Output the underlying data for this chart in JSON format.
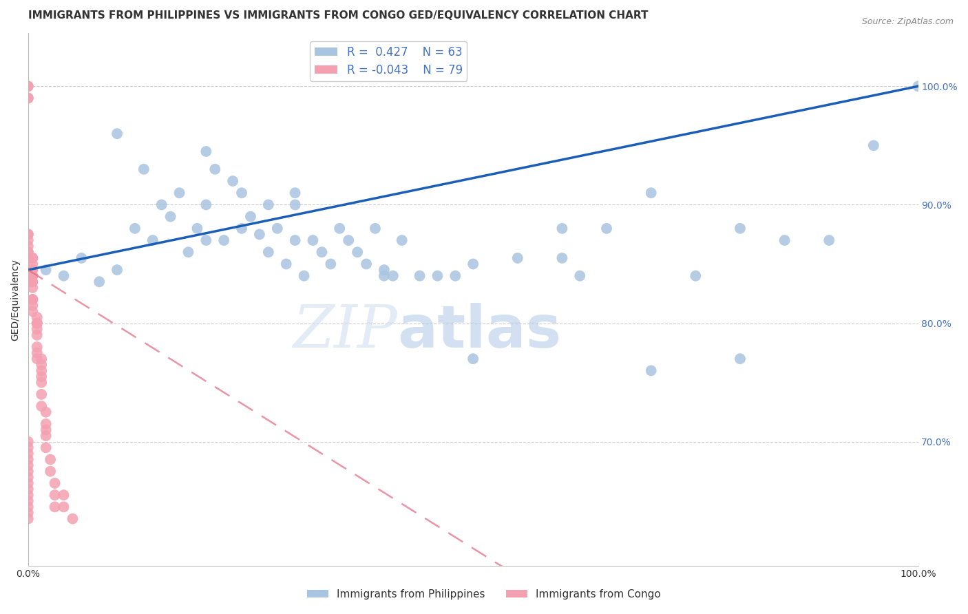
{
  "title": "IMMIGRANTS FROM PHILIPPINES VS IMMIGRANTS FROM CONGO GED/EQUIVALENCY CORRELATION CHART",
  "source": "Source: ZipAtlas.com",
  "ylabel": "GED/Equivalency",
  "ytick_labels": [
    "100.0%",
    "90.0%",
    "80.0%",
    "70.0%"
  ],
  "ytick_positions": [
    1.0,
    0.9,
    0.8,
    0.7
  ],
  "xlim": [
    0.0,
    1.0
  ],
  "ylim": [
    0.595,
    1.045
  ],
  "legend_r_blue": "0.427",
  "legend_n_blue": "63",
  "legend_r_pink": "-0.043",
  "legend_n_pink": "79",
  "color_blue": "#a8c4e0",
  "color_pink": "#f4a0b0",
  "color_trendline_blue": "#1a5eb8",
  "color_trendline_pink": "#e06880",
  "philippines_x": [
    0.02,
    0.04,
    0.06,
    0.08,
    0.1,
    0.12,
    0.13,
    0.14,
    0.15,
    0.16,
    0.17,
    0.18,
    0.19,
    0.2,
    0.2,
    0.21,
    0.22,
    0.23,
    0.24,
    0.24,
    0.25,
    0.26,
    0.27,
    0.27,
    0.28,
    0.29,
    0.3,
    0.3,
    0.31,
    0.32,
    0.33,
    0.34,
    0.35,
    0.36,
    0.37,
    0.38,
    0.39,
    0.4,
    0.41,
    0.42,
    0.44,
    0.46,
    0.48,
    0.5,
    0.55,
    0.6,
    0.62,
    0.65,
    0.7,
    0.75,
    0.8,
    0.85,
    0.9,
    0.95,
    1.0,
    0.1,
    0.2,
    0.3,
    0.4,
    0.5,
    0.6,
    0.7,
    0.8
  ],
  "philippines_y": [
    0.845,
    0.84,
    0.855,
    0.835,
    0.845,
    0.88,
    0.93,
    0.87,
    0.9,
    0.89,
    0.91,
    0.86,
    0.88,
    0.87,
    0.9,
    0.93,
    0.87,
    0.92,
    0.88,
    0.91,
    0.89,
    0.875,
    0.86,
    0.9,
    0.88,
    0.85,
    0.87,
    0.9,
    0.84,
    0.87,
    0.86,
    0.85,
    0.88,
    0.87,
    0.86,
    0.85,
    0.88,
    0.845,
    0.84,
    0.87,
    0.84,
    0.84,
    0.84,
    0.85,
    0.855,
    0.88,
    0.84,
    0.88,
    0.91,
    0.84,
    0.88,
    0.87,
    0.87,
    0.95,
    1.0,
    0.96,
    0.945,
    0.91,
    0.84,
    0.77,
    0.855,
    0.76,
    0.77
  ],
  "congo_x": [
    0.0,
    0.0,
    0.0,
    0.0,
    0.0,
    0.0,
    0.0,
    0.0,
    0.0,
    0.0,
    0.0,
    0.0,
    0.0,
    0.0,
    0.0,
    0.0,
    0.0,
    0.0,
    0.0,
    0.0,
    0.005,
    0.005,
    0.005,
    0.005,
    0.005,
    0.005,
    0.005,
    0.005,
    0.005,
    0.005,
    0.005,
    0.005,
    0.005,
    0.005,
    0.005,
    0.005,
    0.01,
    0.01,
    0.01,
    0.01,
    0.01,
    0.01,
    0.01,
    0.01,
    0.01,
    0.015,
    0.015,
    0.015,
    0.015,
    0.015,
    0.015,
    0.015,
    0.02,
    0.02,
    0.02,
    0.02,
    0.02,
    0.025,
    0.025,
    0.03,
    0.03,
    0.03,
    0.04,
    0.04,
    0.05,
    0.0,
    0.0,
    0.0,
    0.0,
    0.0,
    0.0,
    0.0,
    0.0,
    0.0,
    0.0,
    0.0,
    0.0,
    0.0,
    0.0
  ],
  "congo_y": [
    1.0,
    1.0,
    0.99,
    0.99,
    0.875,
    0.875,
    0.87,
    0.865,
    0.86,
    0.86,
    0.855,
    0.855,
    0.845,
    0.845,
    0.84,
    0.84,
    0.84,
    0.84,
    0.84,
    0.835,
    0.855,
    0.855,
    0.85,
    0.845,
    0.845,
    0.84,
    0.84,
    0.84,
    0.835,
    0.835,
    0.83,
    0.82,
    0.82,
    0.82,
    0.815,
    0.81,
    0.805,
    0.8,
    0.8,
    0.8,
    0.795,
    0.79,
    0.78,
    0.775,
    0.77,
    0.77,
    0.765,
    0.76,
    0.755,
    0.75,
    0.74,
    0.73,
    0.725,
    0.715,
    0.71,
    0.705,
    0.695,
    0.685,
    0.675,
    0.665,
    0.655,
    0.645,
    0.655,
    0.645,
    0.635,
    0.7,
    0.695,
    0.69,
    0.685,
    0.68,
    0.675,
    0.67,
    0.665,
    0.66,
    0.655,
    0.65,
    0.645,
    0.64,
    0.635
  ],
  "watermark_zip": "ZIP",
  "watermark_atlas": "atlas",
  "background_color": "#ffffff",
  "grid_color": "#cccccc",
  "title_fontsize": 11,
  "axis_label_fontsize": 10,
  "tick_fontsize": 10,
  "legend_fontsize": 12
}
